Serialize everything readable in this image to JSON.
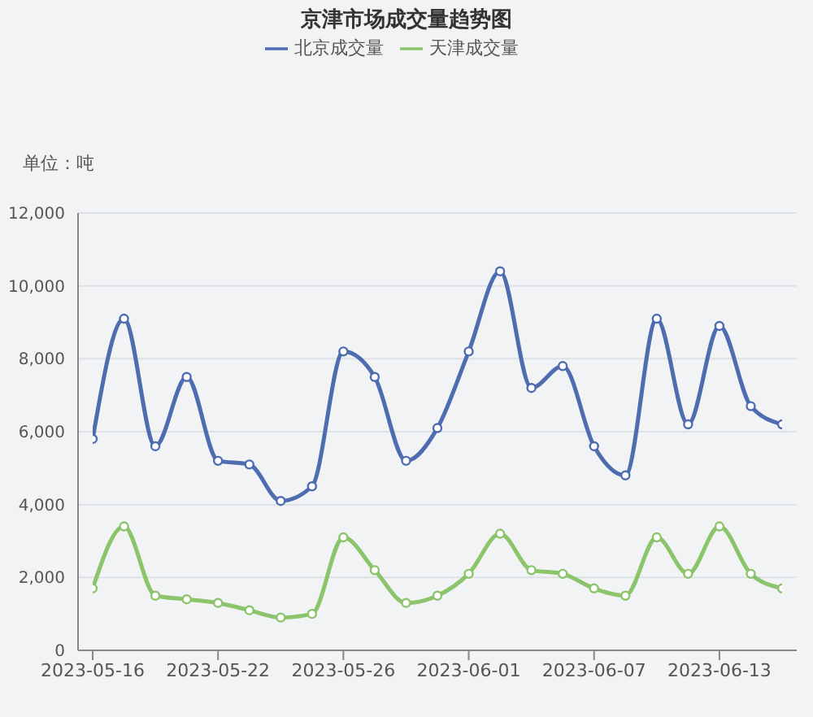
{
  "chart_data": {
    "type": "line",
    "title": "京津市场成交量趋势图",
    "ylabel": "单位：吨",
    "categories": [
      "2023-05-16",
      null,
      null,
      null,
      "2023-05-22",
      null,
      null,
      null,
      "2023-05-26",
      null,
      null,
      null,
      "2023-06-01",
      null,
      null,
      null,
      "2023-06-07",
      null,
      null,
      null,
      "2023-06-13",
      null,
      null
    ],
    "series": [
      {
        "name": "北京成交量",
        "color": "#4e6cb0",
        "values": [
          5800,
          9100,
          5600,
          7500,
          5200,
          5100,
          4100,
          4500,
          8200,
          7500,
          5200,
          6100,
          8200,
          10400,
          7200,
          7800,
          5600,
          4800,
          9100,
          6200,
          8900,
          6700,
          6200
        ]
      },
      {
        "name": "天津成交量",
        "color": "#8bc46a",
        "values": [
          1700,
          3400,
          1500,
          1400,
          1300,
          1100,
          900,
          1000,
          3100,
          2200,
          1300,
          1500,
          2100,
          3200,
          2200,
          2100,
          1700,
          1500,
          3100,
          2100,
          3400,
          2100,
          1700
        ]
      }
    ],
    "ylim": [
      0,
      12000
    ],
    "yticks": [
      0,
      {
        "value": 2000,
        "label": "2,000"
      },
      {
        "value": 4000,
        "label": "4,000"
      },
      {
        "value": 6000,
        "label": "6,000"
      },
      {
        "value": 8000,
        "label": "8,000"
      },
      {
        "value": 10000,
        "label": "10,000"
      },
      {
        "value": 12000,
        "label": "12,000"
      }
    ],
    "grid": "y",
    "legend": "top",
    "marker": "circle",
    "line_style": "solid"
  }
}
